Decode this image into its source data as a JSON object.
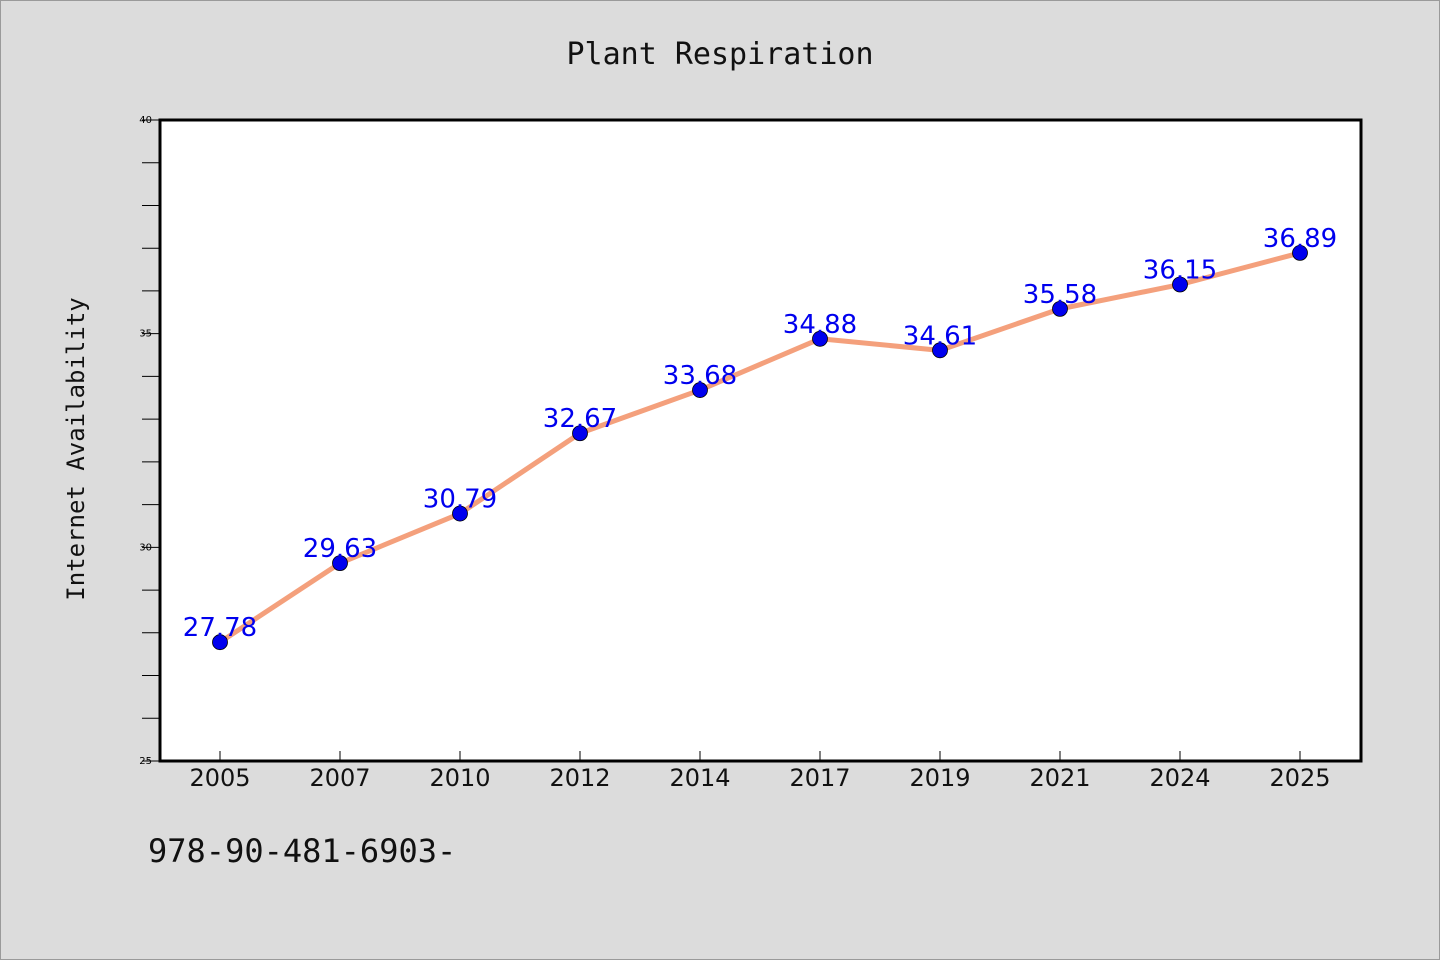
{
  "chart_data": {
    "type": "line",
    "title": "Plant Respiration",
    "xlabel": "",
    "ylabel": "Internet Availability",
    "categories": [
      "2005",
      "2007",
      "2010",
      "2012",
      "2014",
      "2017",
      "2019",
      "2021",
      "2024",
      "2025"
    ],
    "series": [
      {
        "values": [
          27.78,
          29.63,
          30.79,
          32.67,
          33.68,
          34.88,
          34.61,
          35.58,
          36.15,
          36.89
        ],
        "labels": [
          "27.78",
          "29.63",
          "30.79",
          "32.67",
          "33.68",
          "34.88",
          "34.61",
          "35.58",
          "36.15",
          "36.89"
        ]
      }
    ],
    "ylim": [
      25,
      40
    ],
    "yticks": [
      "25",
      "30",
      "35",
      "40"
    ],
    "grid": false,
    "colors": {
      "line": "#f4a07c",
      "marker": "#0000ee",
      "data_label": "#0000ee",
      "plot_background": "#ffffff",
      "page_background": "#dcdcdc"
    }
  },
  "footer": {
    "isbn": "978-90-481-6903-"
  }
}
